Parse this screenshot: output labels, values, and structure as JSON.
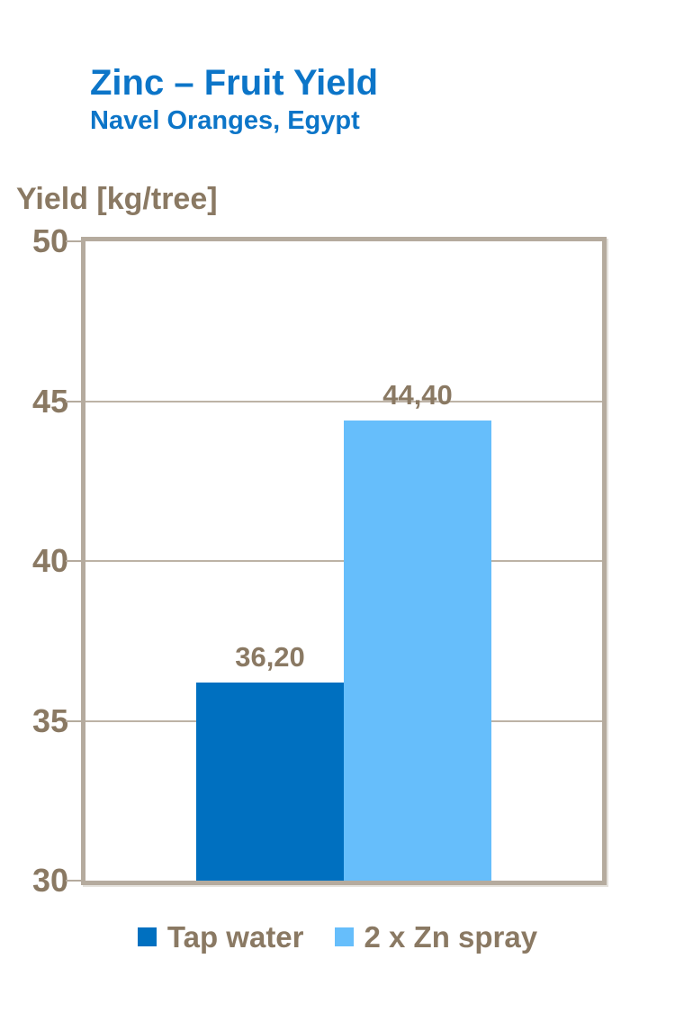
{
  "header": {
    "title": "Zinc – Fruit Yield",
    "subtitle": "Navel Oranges, Egypt"
  },
  "chart_data": {
    "type": "bar",
    "title": "Zinc – Fruit Yield",
    "subtitle": "Navel Oranges, Egypt",
    "xlabel": "",
    "ylabel": "Yield [kg/tree]",
    "ylim": [
      30,
      50
    ],
    "yticks": [
      30,
      35,
      40,
      45,
      50
    ],
    "grid": "horizontal gridlines at interior ticks (35, 40, 45)",
    "legend_position": "bottom-center",
    "decimal_separator": "comma",
    "series": [
      {
        "name": "Tap water",
        "value": 36.2,
        "label": "36,20",
        "color": "#0070C0"
      },
      {
        "name": "2 x Zn spray",
        "value": 44.4,
        "label": "44,40",
        "color": "#66BEFB"
      }
    ]
  },
  "colors": {
    "title_blue": "#0C75C8",
    "axis_text_brown": "#8A7963",
    "frame_tan": "#B5AB9E",
    "gridline_tan": "#BDB3A6",
    "background": "#FFFFFF"
  }
}
